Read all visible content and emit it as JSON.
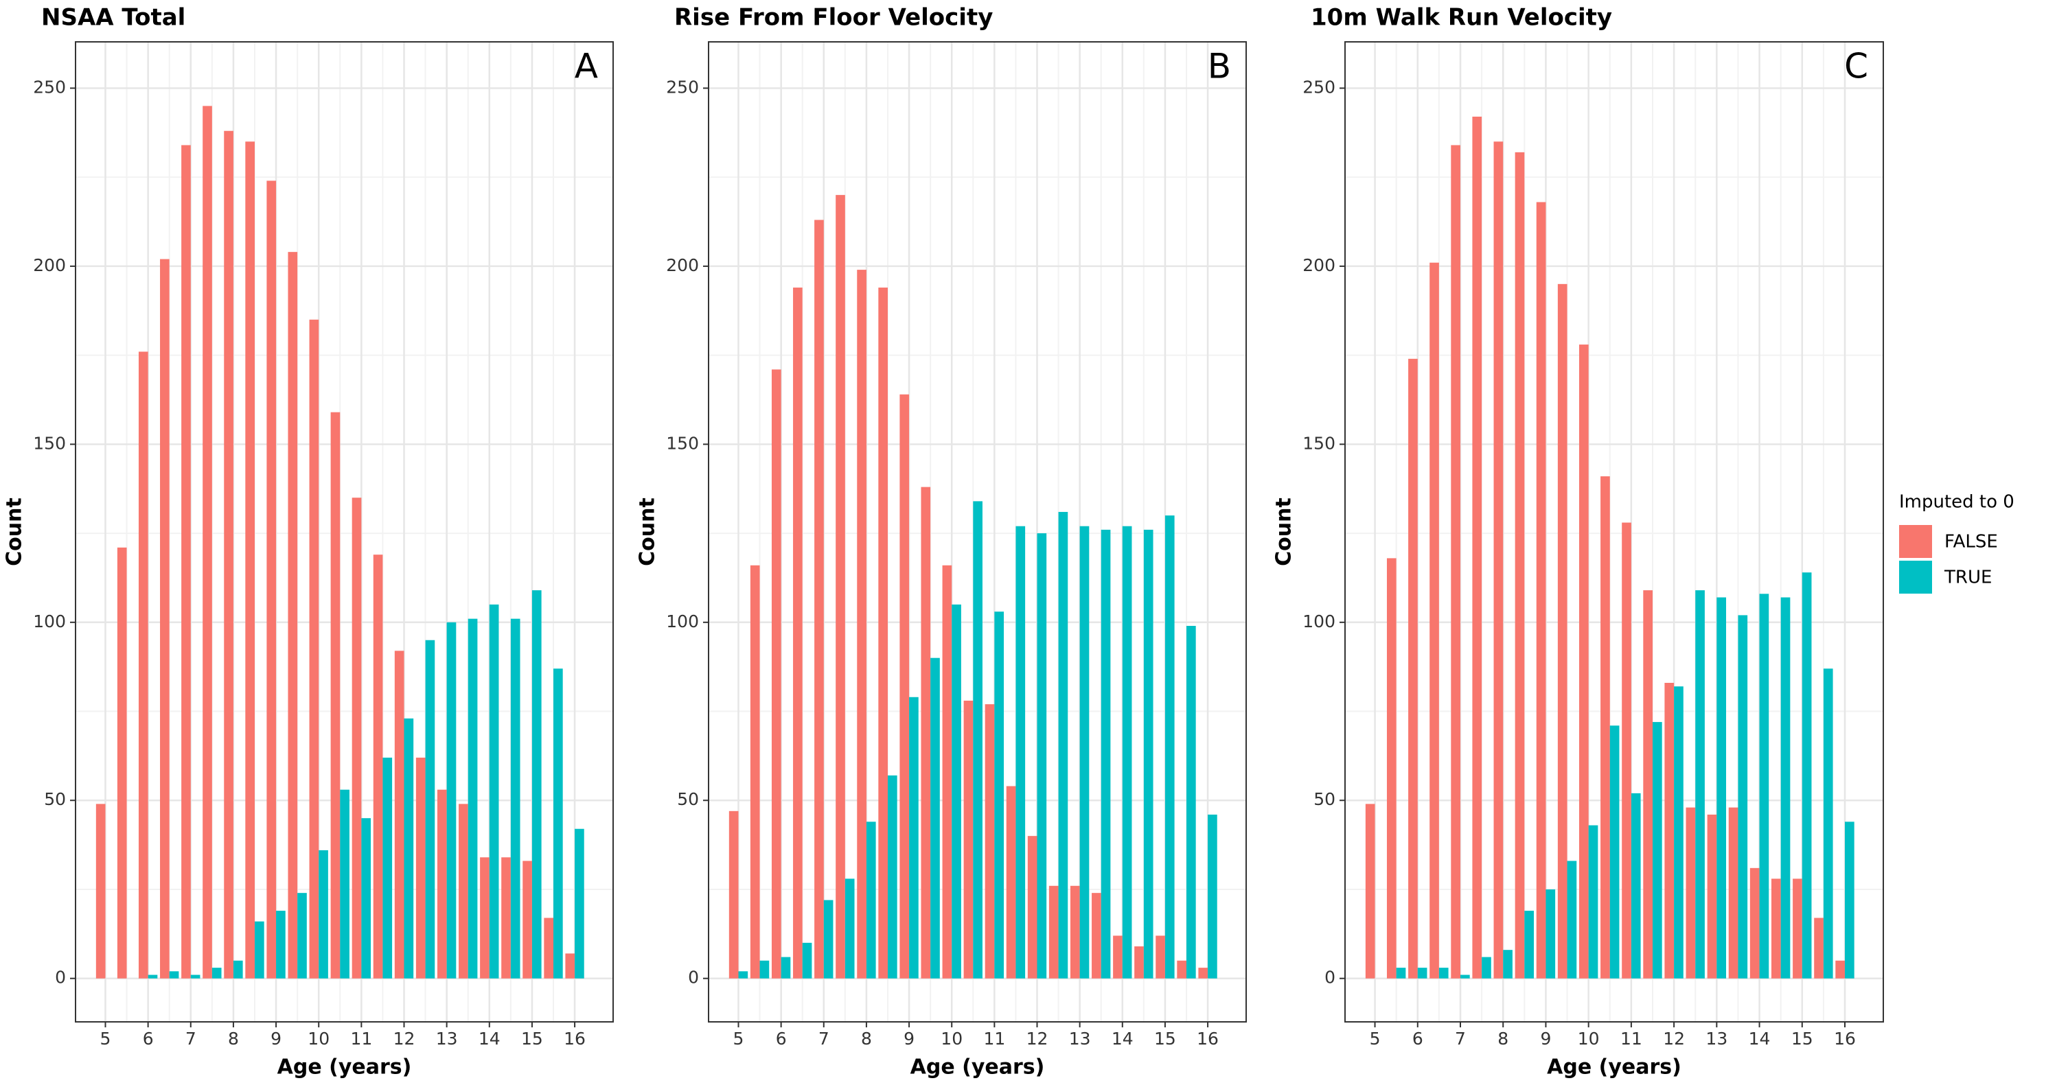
{
  "chart_data": [
    {
      "type": "bar",
      "title": "NSAA Total",
      "annotation": "A",
      "xlabel": "Age (years)",
      "ylabel": "Count",
      "x": [
        5,
        5.5,
        6,
        6.5,
        7,
        7.5,
        8,
        8.5,
        9,
        9.5,
        10,
        10.5,
        11,
        11.5,
        12,
        12.5,
        13,
        13.5,
        14,
        14.5,
        15,
        15.5,
        16
      ],
      "series": [
        {
          "name": "FALSE",
          "color": "#F8766D",
          "values": [
            49,
            121,
            176,
            202,
            234,
            245,
            238,
            235,
            224,
            204,
            185,
            159,
            135,
            119,
            92,
            62,
            53,
            49,
            34,
            34,
            33,
            17,
            7
          ]
        },
        {
          "name": "TRUE",
          "color": "#00BFC4",
          "values": [
            0,
            0,
            1,
            2,
            1,
            3,
            5,
            16,
            19,
            24,
            36,
            53,
            45,
            62,
            73,
            95,
            100,
            101,
            105,
            101,
            109,
            87,
            42
          ]
        }
      ],
      "xlim": [
        4.3,
        16.9
      ],
      "ylim": [
        -12.2,
        263
      ],
      "xticks": [
        5,
        6,
        7,
        8,
        9,
        10,
        11,
        12,
        13,
        14,
        15,
        16
      ],
      "yticks": [
        0,
        50,
        100,
        150,
        200,
        250
      ],
      "grid": true
    },
    {
      "type": "bar",
      "title": "Rise From Floor Velocity",
      "annotation": "B",
      "xlabel": "Age (years)",
      "ylabel": "Count",
      "x": [
        5,
        5.5,
        6,
        6.5,
        7,
        7.5,
        8,
        8.5,
        9,
        9.5,
        10,
        10.5,
        11,
        11.5,
        12,
        12.5,
        13,
        13.5,
        14,
        14.5,
        15,
        15.5,
        16
      ],
      "series": [
        {
          "name": "FALSE",
          "color": "#F8766D",
          "values": [
            47,
            116,
            171,
            194,
            213,
            220,
            199,
            194,
            164,
            138,
            116,
            78,
            77,
            54,
            40,
            26,
            26,
            24,
            12,
            9,
            12,
            5,
            3
          ]
        },
        {
          "name": "TRUE",
          "color": "#00BFC4",
          "values": [
            2,
            5,
            6,
            10,
            22,
            28,
            44,
            57,
            79,
            90,
            105,
            134,
            103,
            127,
            125,
            131,
            127,
            126,
            127,
            126,
            130,
            99,
            46
          ]
        }
      ],
      "xlim": [
        4.3,
        16.9
      ],
      "ylim": [
        -12.2,
        263
      ],
      "xticks": [
        5,
        6,
        7,
        8,
        9,
        10,
        11,
        12,
        13,
        14,
        15,
        16
      ],
      "yticks": [
        0,
        50,
        100,
        150,
        200,
        250
      ],
      "grid": true
    },
    {
      "type": "bar",
      "title": "10m Walk Run Velocity",
      "annotation": "C",
      "xlabel": "Age (years)",
      "ylabel": "Count",
      "x": [
        5,
        5.5,
        6,
        6.5,
        7,
        7.5,
        8,
        8.5,
        9,
        9.5,
        10,
        10.5,
        11,
        11.5,
        12,
        12.5,
        13,
        13.5,
        14,
        14.5,
        15,
        15.5,
        16
      ],
      "series": [
        {
          "name": "FALSE",
          "color": "#F8766D",
          "values": [
            49,
            118,
            174,
            201,
            234,
            242,
            235,
            232,
            218,
            195,
            178,
            141,
            128,
            109,
            83,
            48,
            46,
            48,
            31,
            28,
            28,
            17,
            5
          ]
        },
        {
          "name": "TRUE",
          "color": "#00BFC4",
          "values": [
            0,
            3,
            3,
            3,
            1,
            6,
            8,
            19,
            25,
            33,
            43,
            71,
            52,
            72,
            82,
            109,
            107,
            102,
            108,
            107,
            114,
            87,
            44
          ]
        }
      ],
      "xlim": [
        4.3,
        16.9
      ],
      "ylim": [
        -12.2,
        263
      ],
      "xticks": [
        5,
        6,
        7,
        8,
        9,
        10,
        11,
        12,
        13,
        14,
        15,
        16
      ],
      "yticks": [
        0,
        50,
        100,
        150,
        200,
        250
      ],
      "grid": true,
      "legend_title": "Imputed to 0"
    }
  ]
}
